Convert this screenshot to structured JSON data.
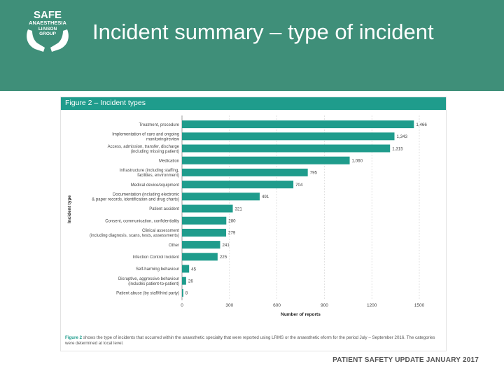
{
  "slide": {
    "title": "Incident summary – type of incident",
    "footer": "PATIENT SAFETY UPDATE JANUARY 2017",
    "logo": {
      "line1": "SAFE",
      "line2": "ANAESTHESIA",
      "line3": "LIAISON",
      "line4": "GROUP"
    }
  },
  "figure": {
    "header": "Figure 2 – Incident types",
    "caption_label": "Figure 2",
    "caption_text": " shows the type of incidents that occurred within the anaesthetic specialty that were reported using LRMS or the anaesthetic eform for the period July – September 2016. The categories were determined at local level."
  },
  "colors": {
    "header_bg": "#3f8f79",
    "bar": "#1f9c8c",
    "axis_text": "#444444"
  },
  "chart_data": {
    "type": "bar",
    "orientation": "horizontal",
    "title": "",
    "ylabel": "Incident type",
    "xlabel": "Number of reports",
    "xlim": [
      0,
      1500
    ],
    "xticks": [
      0,
      300,
      600,
      900,
      1200,
      1500
    ],
    "grid": true,
    "categories": [
      [
        "Treatment, procedure"
      ],
      [
        "Implementation of care and ongoing",
        "monitoring/review"
      ],
      [
        "Access, admission, transfer, discharge",
        "(including missing patient)"
      ],
      [
        "Medication"
      ],
      [
        "Infrastructure (including staffing,",
        "facilities, environment)"
      ],
      [
        "Medical device/equipment"
      ],
      [
        "Documentation (including electronic",
        "& paper records, identification and drug charts)"
      ],
      [
        "Patient accident"
      ],
      [
        "Consent, communication, confidentiality"
      ],
      [
        "Clinical assessment",
        "(including diagnosis, scans, tests, assessments)"
      ],
      [
        "Other"
      ],
      [
        "Infection Control Incident"
      ],
      [
        "Self-harming behaviour"
      ],
      [
        "Disruptive, aggressive behaviour",
        "(includes patient-to-patient)"
      ],
      [
        "Patient abuse (by staff/third party)"
      ]
    ],
    "values": [
      1466,
      1343,
      1315,
      1060,
      795,
      704,
      491,
      321,
      280,
      279,
      241,
      225,
      45,
      26,
      8
    ],
    "value_labels": [
      "1,466",
      "1,343",
      "1,315",
      "1,060",
      "795",
      "704",
      "491",
      "321",
      "280",
      "279",
      "241",
      "225",
      "45",
      "26",
      "8"
    ]
  }
}
